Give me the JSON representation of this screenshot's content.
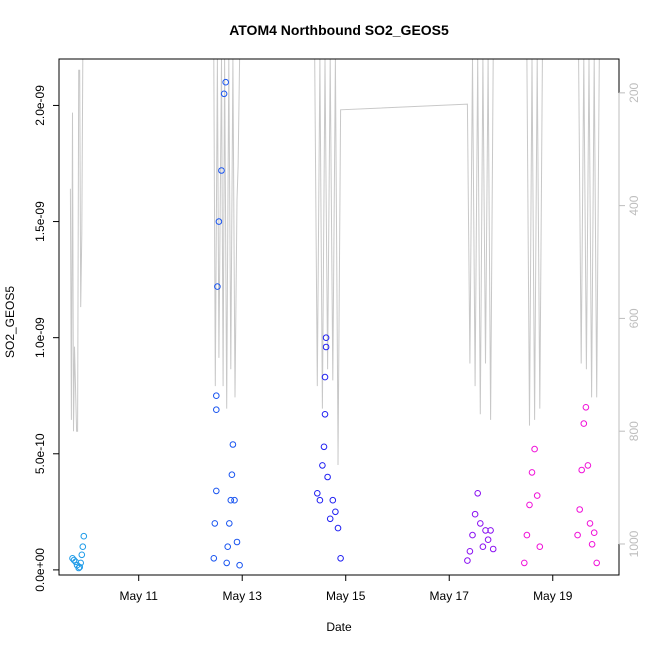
{
  "chart_data": {
    "type": "scatter",
    "title": "ATOM4 Northbound SO2_GEOS5",
    "xlabel": "Date",
    "ylabel": "SO2_GEOS5",
    "x_ticks": [
      "May 11",
      "May 13",
      "May 15",
      "May 17",
      "May 19"
    ],
    "x_tick_days": [
      11,
      13,
      15,
      17,
      19
    ],
    "xlim": [
      9.46,
      20.28
    ],
    "ylim": [
      -2.2e-11,
      2.2e-09
    ],
    "y_ticks": [
      0,
      5e-10,
      1e-09,
      1.5e-09,
      2e-09
    ],
    "y_tick_labels": [
      "0.0e+00",
      "5.0e-10",
      "1.0e-09",
      "1.5e-09",
      "2.0e-09"
    ],
    "y2_label": "",
    "y2_ticks": [
      200,
      400,
      600,
      800,
      1000
    ],
    "y2_lim": [
      1055,
      140
    ],
    "grid": false,
    "flights": [
      {
        "name": "",
        "color": "#1e9be8",
        "x": [
          9.72,
          9.75,
          9.78,
          9.81,
          9.84,
          9.86,
          9.88,
          9.9,
          9.92,
          9.94
        ],
        "y": [
          5e-11,
          4.2e-11,
          3.5e-11,
          2e-11,
          8e-12,
          1.2e-11,
          3e-11,
          6.5e-11,
          1e-10,
          1.45e-10
        ]
      },
      {
        "name": "",
        "color": "#1a55f0",
        "x": [
          12.45,
          12.47,
          12.5,
          12.5,
          12.5,
          12.52,
          12.55,
          12.6,
          12.65,
          12.68,
          12.7,
          12.72,
          12.75,
          12.78,
          12.8,
          12.82,
          12.85,
          12.9,
          12.95
        ],
        "y": [
          5e-11,
          2e-10,
          3.4e-10,
          6.9e-10,
          7.5e-10,
          1.22e-09,
          1.5e-09,
          1.72e-09,
          2.05e-09,
          2.1e-09,
          3e-11,
          1e-10,
          2e-10,
          3e-10,
          4.1e-10,
          5.4e-10,
          3e-10,
          1.2e-10,
          2e-11
        ]
      },
      {
        "name": "",
        "color": "#2020f2",
        "x": [
          14.45,
          14.5,
          14.55,
          14.58,
          14.6,
          14.6,
          14.62,
          14.62,
          14.65,
          14.7,
          14.75,
          14.8,
          14.85,
          14.9
        ],
        "y": [
          3.3e-10,
          3e-10,
          4.5e-10,
          5.3e-10,
          6.7e-10,
          8.3e-10,
          9.6e-10,
          1e-09,
          4e-10,
          2.2e-10,
          3e-10,
          2.5e-10,
          1.8e-10,
          5e-11
        ]
      },
      {
        "name": "",
        "color": "#8a10f2",
        "x": [
          17.35,
          17.4,
          17.45,
          17.5,
          17.55,
          17.6,
          17.65,
          17.7,
          17.75,
          17.8,
          17.85
        ],
        "y": [
          4e-11,
          8e-11,
          1.5e-10,
          2.4e-10,
          3.3e-10,
          2e-10,
          1e-10,
          1.7e-10,
          1.3e-10,
          1.7e-10,
          9e-11
        ]
      },
      {
        "name": "",
        "color": "#f010d8",
        "x": [
          18.45,
          18.5,
          18.55,
          18.6,
          18.65,
          18.7,
          18.75
        ],
        "y": [
          3e-11,
          1.5e-10,
          2.8e-10,
          4.2e-10,
          5.2e-10,
          3.2e-10,
          1e-10
        ]
      },
      {
        "name": "",
        "color": "#f010d8",
        "x": [
          19.48,
          19.52,
          19.56,
          19.6,
          19.64,
          19.68,
          19.72,
          19.76,
          19.8,
          19.85
        ],
        "y": [
          1.5e-10,
          2.6e-10,
          4.3e-10,
          6.3e-10,
          7e-10,
          4.5e-10,
          2e-10,
          1.1e-10,
          1.6e-10,
          3e-11
        ]
      }
    ],
    "pressure_profile": {
      "name": "",
      "color": "#c8c8c8",
      "x": [
        9.68,
        9.7,
        9.72,
        9.74,
        9.76,
        9.8,
        9.82,
        9.84,
        9.86,
        9.88,
        9.9,
        9.9,
        9.92,
        9.94,
        12.45,
        12.48,
        12.52,
        12.55,
        12.6,
        12.63,
        12.66,
        12.7,
        12.74,
        12.78,
        12.82,
        12.86,
        12.9,
        12.92,
        12.95,
        14.4,
        14.45,
        14.5,
        14.55,
        14.6,
        14.65,
        14.7,
        14.75,
        14.8,
        14.85,
        14.85,
        14.9,
        17.35,
        17.4,
        17.45,
        17.5,
        17.55,
        17.6,
        17.65,
        17.7,
        17.75,
        17.8,
        17.85,
        17.9,
        18.5,
        18.55,
        18.6,
        18.65,
        18.7,
        18.75,
        18.8,
        19.5,
        19.55,
        19.6,
        19.65,
        19.7,
        19.75,
        19.8,
        19.85,
        19.9
      ],
      "y": [
        370,
        780,
        235,
        800,
        650,
        800,
        800,
        160,
        160,
        580,
        450,
        450,
        140,
        140,
        140,
        720,
        140,
        670,
        140,
        720,
        140,
        760,
        140,
        690,
        140,
        740,
        390,
        330,
        140,
        140,
        720,
        140,
        760,
        140,
        690,
        140,
        710,
        140,
        830,
        860,
        230,
        220,
        680,
        140,
        720,
        140,
        770,
        140,
        680,
        140,
        780,
        140,
        140,
        140,
        790,
        140,
        780,
        140,
        760,
        140,
        140,
        680,
        140,
        690,
        140,
        740,
        140,
        740,
        140
      ]
    }
  }
}
